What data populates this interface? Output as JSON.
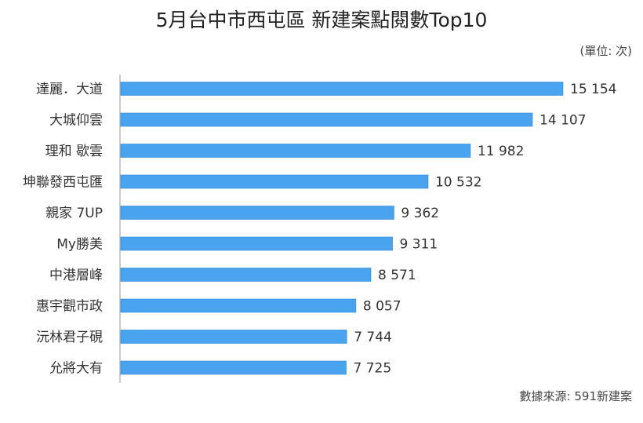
{
  "chart_data": {
    "type": "bar",
    "orientation": "horizontal",
    "title": "5月台中市西屯區 新建案點閱數Top10",
    "unit_note": "(單位: 次)",
    "source_note": "數據來源: 591新建案",
    "categories": [
      "達麗．大道",
      "大城仰雲",
      "理和 歇雲",
      "坤聯發西屯匯",
      "親家 7UP",
      "My勝美",
      "中港層峰",
      "惠宇觀市政",
      "沅林君子硯",
      "允將大有"
    ],
    "values": [
      15154,
      14107,
      11982,
      10532,
      9362,
      9311,
      8571,
      8057,
      7744,
      7725
    ],
    "value_labels": [
      "15 154",
      "14 107",
      "11 982",
      "10 532",
      "9 362",
      "9 311",
      "8 571",
      "8 057",
      "7 744",
      "7 725"
    ],
    "bar_color": "#4aa3ef",
    "bar_stroke": "#2f86d6",
    "grid": false,
    "legend": "none"
  }
}
